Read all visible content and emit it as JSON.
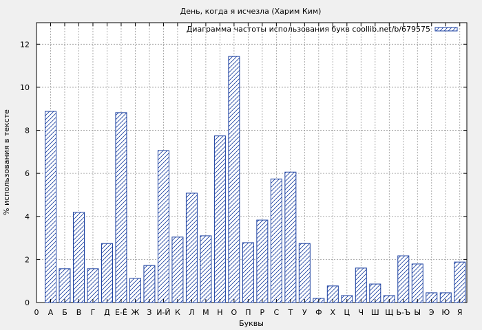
{
  "chart_data": {
    "type": "bar",
    "title": "День, когда я исчезла (Харим Ким)",
    "xlabel": "Буквы",
    "ylabel": "% использования в тексте",
    "legend_label": "Диаграмма частоты использования букв coollib.net/b/679575",
    "legend_position": "top-right",
    "grid": true,
    "ylim": [
      0,
      13
    ],
    "yticks": [
      0,
      2,
      4,
      6,
      8,
      10,
      12
    ],
    "x_origin_label": "0",
    "categories": [
      "А",
      "Б",
      "В",
      "Г",
      "Д",
      "Е-Ё",
      "Ж",
      "З",
      "И-Й",
      "К",
      "Л",
      "М",
      "Н",
      "О",
      "П",
      "Р",
      "С",
      "Т",
      "У",
      "Ф",
      "Х",
      "Ц",
      "Ч",
      "Ш",
      "Щ",
      "Ь-Ъ",
      "Ы",
      "Э",
      "Ю",
      "Я"
    ],
    "values": [
      8.88,
      1.57,
      4.19,
      1.57,
      2.74,
      8.82,
      1.12,
      1.72,
      7.06,
      3.04,
      5.08,
      3.1,
      7.74,
      11.43,
      2.78,
      3.83,
      5.74,
      6.06,
      2.74,
      0.19,
      0.77,
      0.32,
      1.6,
      0.86,
      0.32,
      2.17,
      1.79,
      0.45,
      0.45,
      1.88
    ],
    "colors": {
      "bar_stroke": "#1a3fa0",
      "hatch": "#1a3fa0",
      "bar_fill": "#ffffff",
      "plot_bg": "#ffffff",
      "grid": "#999999"
    }
  }
}
